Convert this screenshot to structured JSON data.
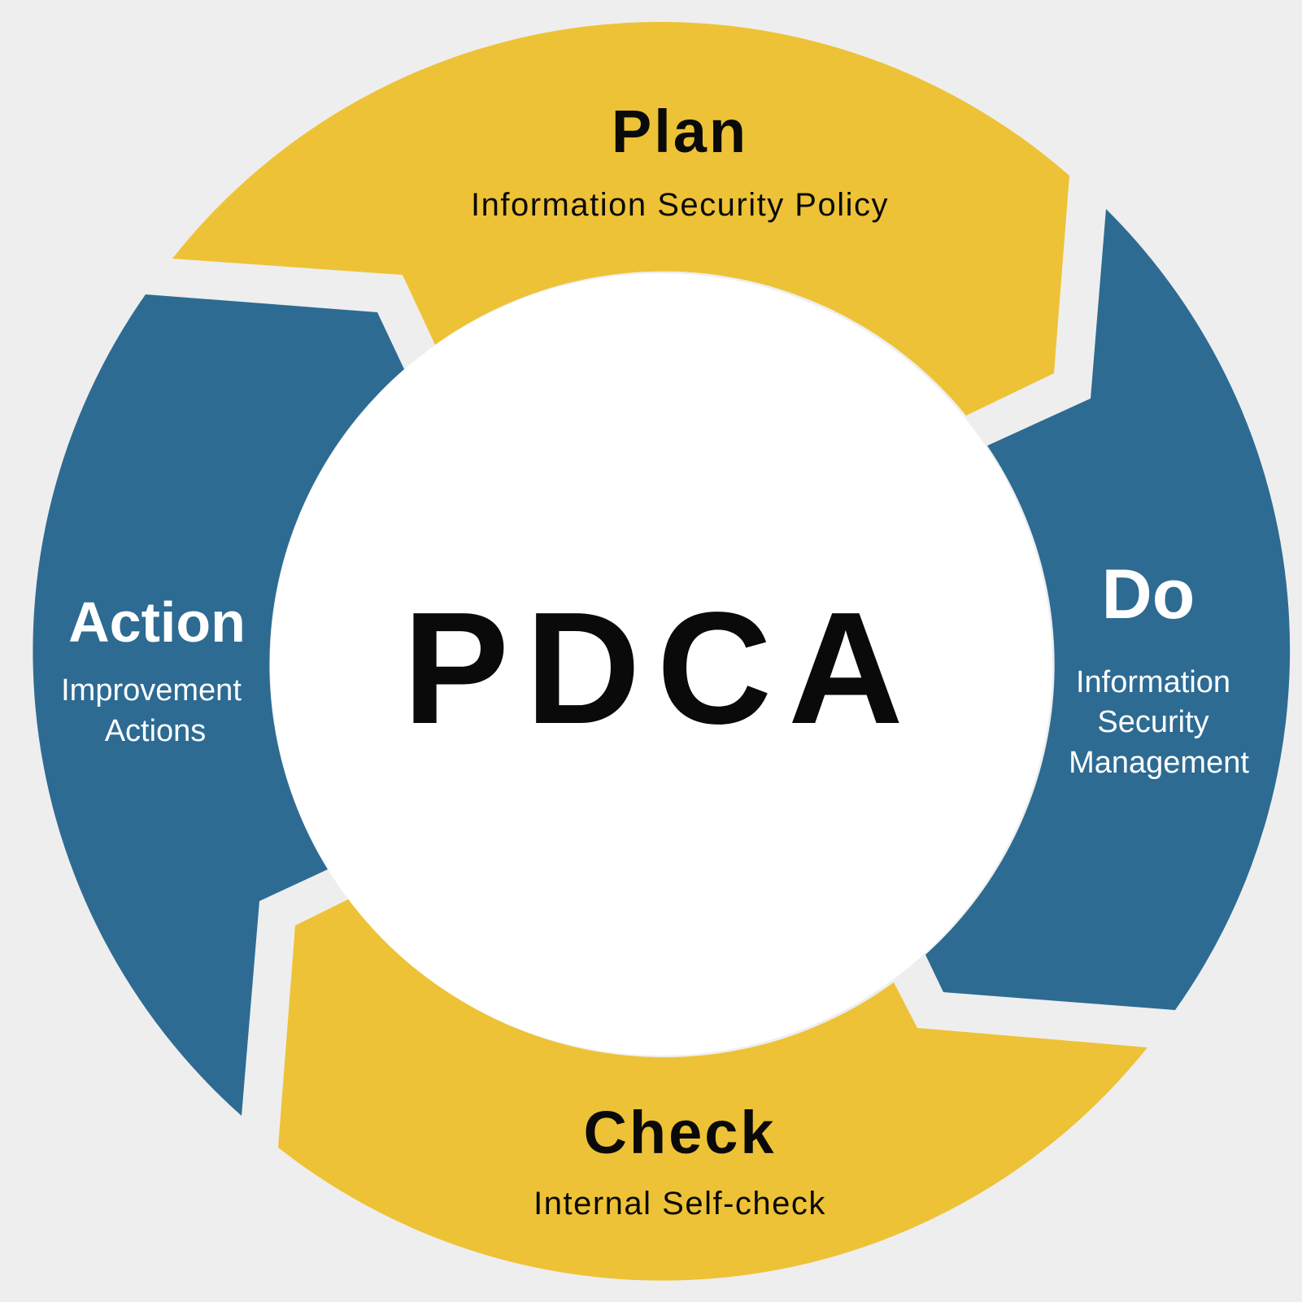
{
  "colors": {
    "background": "#eeeeee",
    "yellow": "#eec236",
    "blue": "#2d6b93",
    "center": "#ffffff",
    "dark_text": "#0a0a0a",
    "light_text": "#ffffff"
  },
  "center": {
    "label": "PDCA"
  },
  "plan": {
    "title": "Plan",
    "lines": [
      "Information Security Policy"
    ]
  },
  "do": {
    "title": "Do",
    "lines": [
      "Information",
      "Security",
      "Management"
    ]
  },
  "check": {
    "title": "Check",
    "lines": [
      "Internal Self-check"
    ]
  },
  "action": {
    "title": "Action",
    "lines": [
      "Improvement",
      "Actions"
    ]
  }
}
